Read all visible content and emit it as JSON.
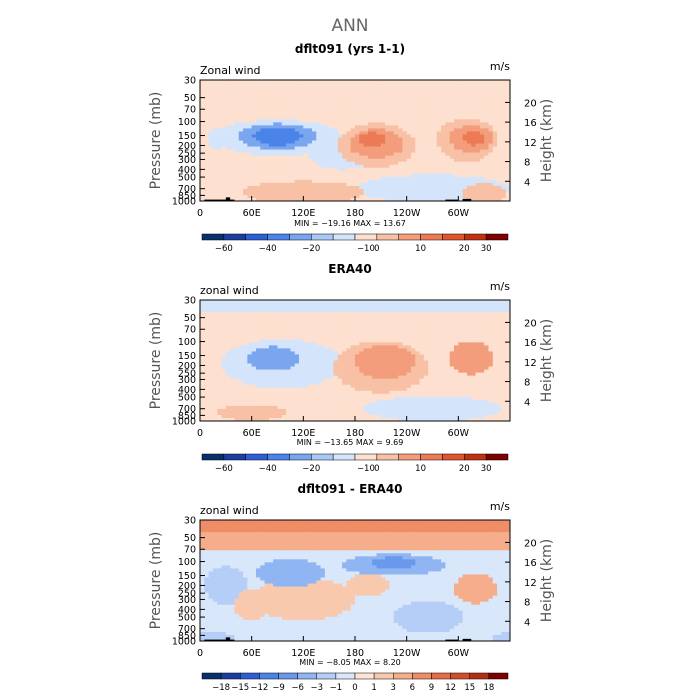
{
  "figure_title": "ANN",
  "colors": {
    "ramp_wind": [
      "#08306b",
      "#1b3f9e",
      "#2c5fd4",
      "#4a84e8",
      "#7aa6ef",
      "#aac8f5",
      "#d4e5fb",
      "#fde0cf",
      "#f8c0a5",
      "#f39d7c",
      "#ec7a55",
      "#e0542f",
      "#c0320f",
      "#7f0000"
    ],
    "ramp_diff": [
      "#08306b",
      "#1b3f9e",
      "#2c5fd4",
      "#4a84e8",
      "#6a98ed",
      "#8fb5f2",
      "#b5cef7",
      "#d9e7fb",
      "#fde3d5",
      "#f9c9ae",
      "#f5ad8b",
      "#ef8d67",
      "#e56c45",
      "#d24d29",
      "#b22f12",
      "#7f0000"
    ],
    "land": "#000000"
  },
  "chart_data": [
    {
      "type": "heatmap",
      "title": "dflt091 (yrs 1-1)",
      "left_label": "Zonal wind",
      "right_label": "m/s",
      "ylabel": "Pressure (mb)",
      "ylabel_right": "Height (km)",
      "x_ticks": [
        "0",
        "60E",
        "120E",
        "180",
        "120W",
        "60W"
      ],
      "xlim": [
        0,
        360
      ],
      "y_ticks": [
        "30",
        "50",
        "70",
        "100",
        "150",
        "200",
        "250",
        "300",
        "400",
        "500",
        "700",
        "850",
        "1000"
      ],
      "ylim_mb": [
        1000,
        30
      ],
      "height_ticks_km": [
        "4",
        "8",
        "12",
        "16",
        "20"
      ],
      "stats": "MIN = −19.16   MAX =  13.67",
      "min": -19.16,
      "max": 13.67,
      "colorbar_levels": [
        "−60",
        "−40",
        "−20",
        "−10",
        "0",
        "10",
        "20",
        "30"
      ],
      "colorbar_bins": 14,
      "features": [
        {
          "kind": "background",
          "value": 0.5
        },
        {
          "kind": "band",
          "p_top": 30,
          "p_bottom": 85,
          "value": 2.5
        },
        {
          "kind": "band",
          "p_top": 30,
          "p_bottom": 42,
          "value": 0.5
        },
        {
          "kind": "blob",
          "lon": 90,
          "p": 160,
          "rx": 75,
          "rp": 110,
          "value": -5
        },
        {
          "kind": "blob",
          "lon": 90,
          "p": 155,
          "rx": 45,
          "rp": 70,
          "value": -12
        },
        {
          "kind": "blob",
          "lon": 90,
          "p": 155,
          "rx": 28,
          "rp": 45,
          "value": -16
        },
        {
          "kind": "blob",
          "lon": 20,
          "p": 170,
          "rx": 12,
          "rp": 60,
          "value": -5
        },
        {
          "kind": "blob",
          "lon": 165,
          "p": 250,
          "rx": 40,
          "rp": 150,
          "value": -3
        },
        {
          "kind": "blob",
          "lon": 205,
          "p": 200,
          "rx": 45,
          "rp": 180,
          "value": 5
        },
        {
          "kind": "blob",
          "lon": 205,
          "p": 190,
          "rx": 32,
          "rp": 100,
          "value": 8
        },
        {
          "kind": "blob",
          "lon": 200,
          "p": 170,
          "rx": 15,
          "rp": 40,
          "value": 11
        },
        {
          "kind": "blob",
          "lon": 310,
          "p": 170,
          "rx": 35,
          "rp": 150,
          "value": 5
        },
        {
          "kind": "blob",
          "lon": 315,
          "p": 165,
          "rx": 25,
          "rp": 80,
          "value": 9
        },
        {
          "kind": "blob",
          "lon": 318,
          "p": 160,
          "rx": 12,
          "rp": 40,
          "value": 13
        },
        {
          "kind": "blob",
          "lon": 120,
          "p": 780,
          "rx": 70,
          "rp": 300,
          "value": 5
        },
        {
          "kind": "blob",
          "lon": 270,
          "p": 700,
          "rx": 90,
          "rp": 350,
          "value": -3
        },
        {
          "kind": "blob",
          "lon": 330,
          "p": 800,
          "rx": 25,
          "rp": 250,
          "value": 5
        }
      ],
      "land": [
        {
          "lon0": 5,
          "lon1": 40,
          "p_top": 960
        },
        {
          "lon0": 30,
          "lon1": 35,
          "p_top": 900
        },
        {
          "lon0": 285,
          "lon1": 300,
          "p_top": 960
        },
        {
          "lon0": 305,
          "lon1": 315,
          "p_top": 940
        }
      ]
    },
    {
      "type": "heatmap",
      "title": "ERA40",
      "left_label": "zonal wind",
      "right_label": "m/s",
      "ylabel": "Pressure (mb)",
      "ylabel_right": "Height (km)",
      "x_ticks": [
        "0",
        "60E",
        "120E",
        "180",
        "120W",
        "60W"
      ],
      "xlim": [
        0,
        360
      ],
      "y_ticks": [
        "30",
        "50",
        "70",
        "100",
        "150",
        "200",
        "250",
        "300",
        "400",
        "500",
        "700",
        "850",
        "1000"
      ],
      "ylim_mb": [
        1000,
        30
      ],
      "height_ticks_km": [
        "4",
        "8",
        "12",
        "16",
        "20"
      ],
      "stats": "MIN = −13.65   MAX =   9.69",
      "min": -13.65,
      "max": 9.69,
      "colorbar_levels": [
        "−60",
        "−40",
        "−20",
        "−10",
        "0",
        "10",
        "20",
        "30"
      ],
      "colorbar_bins": 14,
      "features": [
        {
          "kind": "background",
          "value": 0.5
        },
        {
          "kind": "band",
          "p_top": 30,
          "p_bottom": 42,
          "value": -5
        },
        {
          "kind": "blob",
          "lon": 95,
          "p": 190,
          "rx": 70,
          "rp": 200,
          "value": -5
        },
        {
          "kind": "blob",
          "lon": 85,
          "p": 165,
          "rx": 30,
          "rp": 70,
          "value": -12
        },
        {
          "kind": "blob",
          "lon": 210,
          "p": 210,
          "rx": 55,
          "rp": 230,
          "value": 5
        },
        {
          "kind": "blob",
          "lon": 215,
          "p": 180,
          "rx": 35,
          "rp": 110,
          "value": 8
        },
        {
          "kind": "blob",
          "lon": 315,
          "p": 160,
          "rx": 25,
          "rp": 100,
          "value": 6
        },
        {
          "kind": "blob",
          "lon": 60,
          "p": 780,
          "rx": 40,
          "rp": 200,
          "value": 5
        },
        {
          "kind": "blob",
          "lon": 270,
          "p": 700,
          "rx": 80,
          "rp": 300,
          "value": -3
        }
      ],
      "land": []
    },
    {
      "type": "heatmap",
      "title": "dflt091 - ERA40",
      "left_label": "zonal wind",
      "right_label": "m/s",
      "ylabel": "Pressure (mb)",
      "ylabel_right": "Height (km)",
      "x_ticks": [
        "0",
        "60E",
        "120E",
        "180",
        "120W",
        "60W"
      ],
      "xlim": [
        0,
        360
      ],
      "y_ticks": [
        "30",
        "50",
        "70",
        "100",
        "150",
        "200",
        "250",
        "300",
        "400",
        "500",
        "700",
        "850",
        "1000"
      ],
      "ylim_mb": [
        1000,
        30
      ],
      "height_ticks_km": [
        "4",
        "8",
        "12",
        "16",
        "20"
      ],
      "stats": "MIN =  −8.05   MAX =   8.20",
      "min": -8.05,
      "max": 8.2,
      "colorbar_levels": [
        "−18",
        "−15",
        "−12",
        "−9",
        "−6",
        "−3",
        "−1",
        "0",
        "1",
        "3",
        "6",
        "9",
        "12",
        "15",
        "18"
      ],
      "colorbar_bins": 16,
      "features": [
        {
          "kind": "background",
          "value": -0.5
        },
        {
          "kind": "band",
          "p_top": 30,
          "p_bottom": 75,
          "value": 4
        },
        {
          "kind": "band",
          "p_top": 30,
          "p_bottom": 42,
          "value": 7
        },
        {
          "kind": "blob",
          "lon": 105,
          "p": 140,
          "rx": 40,
          "rp": 70,
          "value": -4
        },
        {
          "kind": "blob",
          "lon": 225,
          "p": 110,
          "rx": 60,
          "rp": 40,
          "value": -4
        },
        {
          "kind": "blob",
          "lon": 225,
          "p": 105,
          "rx": 25,
          "rp": 20,
          "value": -7
        },
        {
          "kind": "blob",
          "lon": 120,
          "p": 300,
          "rx": 60,
          "rp": 250,
          "value": 1.5
        },
        {
          "kind": "blob",
          "lon": 195,
          "p": 200,
          "rx": 25,
          "rp": 80,
          "value": 2
        },
        {
          "kind": "blob",
          "lon": 320,
          "p": 220,
          "rx": 25,
          "rp": 120,
          "value": 4
        },
        {
          "kind": "blob",
          "lon": 30,
          "p": 200,
          "rx": 25,
          "rp": 150,
          "value": -2
        },
        {
          "kind": "blob",
          "lon": 60,
          "p": 350,
          "rx": 20,
          "rp": 200,
          "value": 2
        },
        {
          "kind": "blob",
          "lon": 265,
          "p": 500,
          "rx": 40,
          "rp": 300,
          "value": -2
        },
        {
          "kind": "blob",
          "lon": 10,
          "p": 900,
          "rx": 30,
          "rp": 150,
          "value": -3
        }
      ],
      "land": [
        {
          "lon0": 5,
          "lon1": 40,
          "p_top": 960
        },
        {
          "lon0": 30,
          "lon1": 35,
          "p_top": 900
        },
        {
          "lon0": 285,
          "lon1": 300,
          "p_top": 960
        },
        {
          "lon0": 305,
          "lon1": 315,
          "p_top": 940
        }
      ]
    }
  ]
}
